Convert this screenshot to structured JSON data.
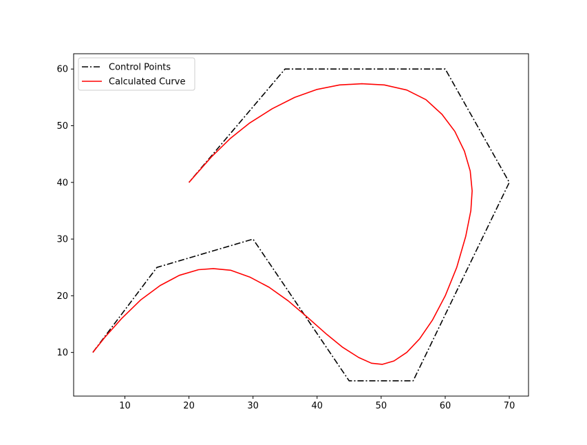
{
  "chart_data": {
    "type": "line",
    "title": "",
    "xlabel": "",
    "ylabel": "",
    "xlim": [
      2,
      73
    ],
    "ylim": [
      2.3,
      62.7
    ],
    "xticks": [
      10,
      20,
      30,
      40,
      50,
      60,
      70
    ],
    "yticks": [
      10,
      20,
      30,
      40,
      50,
      60
    ],
    "grid": false,
    "legend_position": "top-left",
    "series": [
      {
        "name": "Control Points",
        "color": "#000000",
        "line_style": "dash-dot",
        "points": [
          [
            5,
            10
          ],
          [
            15,
            25
          ],
          [
            30,
            30
          ],
          [
            45,
            5
          ],
          [
            55,
            5
          ],
          [
            70,
            40
          ],
          [
            60,
            60
          ],
          [
            35,
            60
          ],
          [
            20,
            40
          ]
        ]
      },
      {
        "name": "Calculated Curve",
        "color": "#ff0000",
        "line_style": "solid",
        "points": [
          [
            5,
            10
          ],
          [
            6.9,
            12.7
          ],
          [
            9.5,
            16
          ],
          [
            12.5,
            19.3
          ],
          [
            15.5,
            21.8
          ],
          [
            18.5,
            23.6
          ],
          [
            21.5,
            24.6
          ],
          [
            23.8,
            24.8
          ],
          [
            26.5,
            24.5
          ],
          [
            29.5,
            23.3
          ],
          [
            32.5,
            21.5
          ],
          [
            35.5,
            19.1
          ],
          [
            38.5,
            16.2
          ],
          [
            41.5,
            13.2
          ],
          [
            44,
            10.9
          ],
          [
            46.5,
            9.1
          ],
          [
            48.5,
            8.1
          ],
          [
            50.2,
            7.9
          ],
          [
            52,
            8.5
          ],
          [
            54,
            10
          ],
          [
            56,
            12.4
          ],
          [
            58,
            15.7
          ],
          [
            60,
            20
          ],
          [
            61.8,
            25
          ],
          [
            63.2,
            30.5
          ],
          [
            64,
            35
          ],
          [
            64.2,
            38.5
          ],
          [
            63.9,
            42
          ],
          [
            63,
            45.5
          ],
          [
            61.5,
            49
          ],
          [
            59.5,
            52
          ],
          [
            57,
            54.6
          ],
          [
            54,
            56.3
          ],
          [
            50.5,
            57.2
          ],
          [
            47,
            57.4
          ],
          [
            43.5,
            57.2
          ],
          [
            40,
            56.4
          ],
          [
            36.5,
            55
          ],
          [
            33,
            53
          ],
          [
            29.5,
            50.5
          ],
          [
            26.5,
            47.8
          ],
          [
            23.5,
            44.5
          ],
          [
            20,
            40
          ]
        ]
      }
    ]
  }
}
